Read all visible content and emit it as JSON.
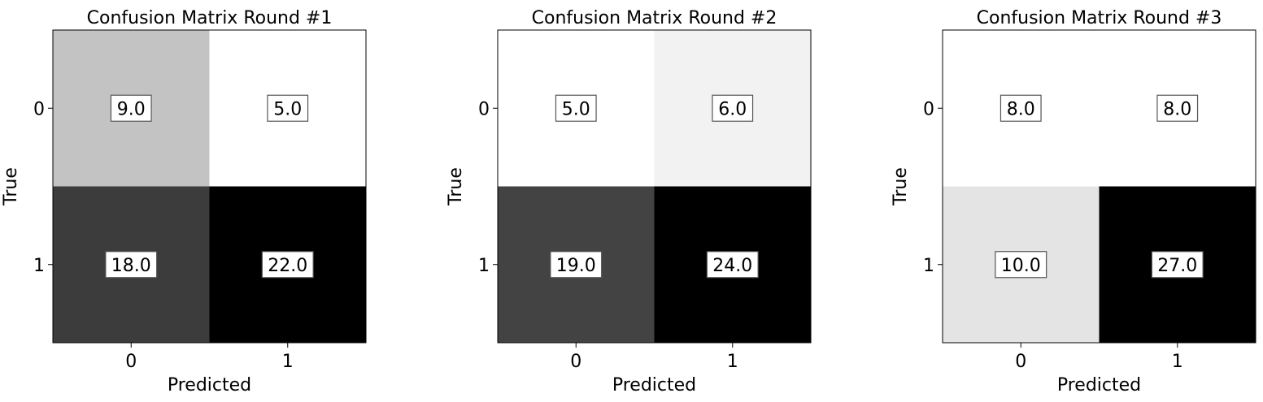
{
  "chart_data": [
    {
      "type": "heatmap",
      "title": "Confusion Matrix Round #1",
      "xlabel": "Predicted",
      "ylabel": "True",
      "x_categories": [
        "0",
        "1"
      ],
      "y_categories": [
        "0",
        "1"
      ],
      "colormap": "grayscale-reversed",
      "values": [
        [
          9.0,
          5.0
        ],
        [
          18.0,
          22.0
        ]
      ],
      "labels": [
        [
          "9.0",
          "5.0"
        ],
        [
          "18.0",
          "22.0"
        ]
      ]
    },
    {
      "type": "heatmap",
      "title": "Confusion Matrix Round #2",
      "xlabel": "Predicted",
      "ylabel": "True",
      "x_categories": [
        "0",
        "1"
      ],
      "y_categories": [
        "0",
        "1"
      ],
      "colormap": "grayscale-reversed",
      "values": [
        [
          5.0,
          6.0
        ],
        [
          19.0,
          24.0
        ]
      ],
      "labels": [
        [
          "5.0",
          "6.0"
        ],
        [
          "19.0",
          "24.0"
        ]
      ]
    },
    {
      "type": "heatmap",
      "title": "Confusion Matrix Round #3",
      "xlabel": "Predicted",
      "ylabel": "True",
      "x_categories": [
        "0",
        "1"
      ],
      "y_categories": [
        "0",
        "1"
      ],
      "colormap": "grayscale-reversed",
      "values": [
        [
          8.0,
          8.0
        ],
        [
          10.0,
          27.0
        ]
      ],
      "labels": [
        [
          "8.0",
          "8.0"
        ],
        [
          "10.0",
          "27.0"
        ]
      ]
    }
  ]
}
